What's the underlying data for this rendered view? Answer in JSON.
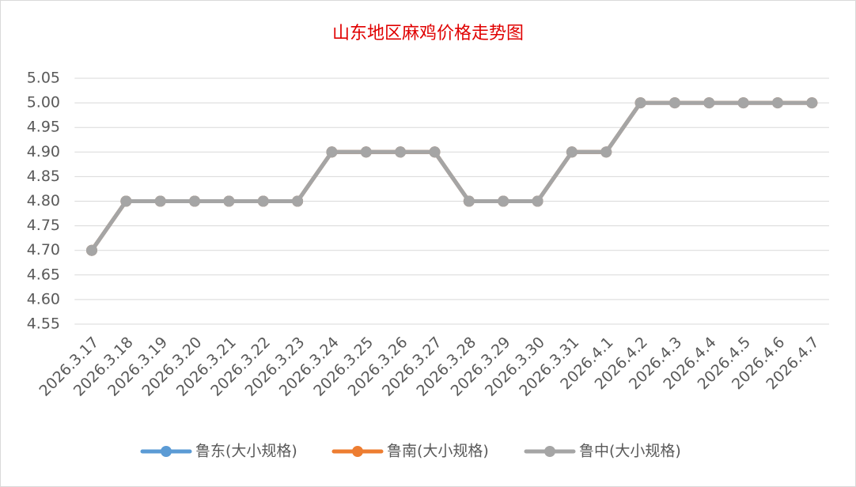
{
  "chart_data": {
    "type": "line",
    "title": "山东地区麻鸡价格走势图",
    "categories": [
      "2026.3.17",
      "2026.3.18",
      "2026.3.19",
      "2026.3.20",
      "2026.3.21",
      "2026.3.22",
      "2026.3.23",
      "2026.3.24",
      "2026.3.25",
      "2026.3.26",
      "2026.3.27",
      "2026.3.28",
      "2026.3.29",
      "2026.3.30",
      "2026.3.31",
      "2026.4.1",
      "2026.4.2",
      "2026.4.3",
      "2026.4.4",
      "2026.4.5",
      "2026.4.6",
      "2026.4.7"
    ],
    "series": [
      {
        "name": "鲁东(大小规格)",
        "color": "#5b9bd5",
        "values": [
          4.7,
          4.8,
          4.8,
          4.8,
          4.8,
          4.8,
          4.8,
          4.9,
          4.9,
          4.9,
          4.9,
          4.8,
          4.8,
          4.8,
          4.9,
          4.9,
          5.0,
          5.0,
          5.0,
          5.0,
          5.0,
          5.0
        ]
      },
      {
        "name": "鲁南(大小规格)",
        "color": "#ed7d31",
        "values": [
          4.7,
          4.8,
          4.8,
          4.8,
          4.8,
          4.8,
          4.8,
          4.9,
          4.9,
          4.9,
          4.9,
          4.8,
          4.8,
          4.8,
          4.9,
          4.9,
          5.0,
          5.0,
          5.0,
          5.0,
          5.0,
          5.0
        ]
      },
      {
        "name": "鲁中(大小规格)",
        "color": "#a5a5a5",
        "values": [
          4.7,
          4.8,
          4.8,
          4.8,
          4.8,
          4.8,
          4.8,
          4.9,
          4.9,
          4.9,
          4.9,
          4.8,
          4.8,
          4.8,
          4.9,
          4.9,
          5.0,
          5.0,
          5.0,
          5.0,
          5.0,
          5.0
        ]
      }
    ],
    "ylim": [
      4.55,
      5.05
    ],
    "yticks": [
      {
        "value": 4.55,
        "label": "4.55"
      },
      {
        "value": 4.6,
        "label": "4.60"
      },
      {
        "value": 4.65,
        "label": "4.65"
      },
      {
        "value": 4.7,
        "label": "4.70"
      },
      {
        "value": 4.75,
        "label": "4.75"
      },
      {
        "value": 4.8,
        "label": "4.80"
      },
      {
        "value": 4.85,
        "label": "4.85"
      },
      {
        "value": 4.9,
        "label": "4.90"
      },
      {
        "value": 4.95,
        "label": "4.95"
      },
      {
        "value": 5.0,
        "label": "5.00"
      },
      {
        "value": 5.05,
        "label": "5.05"
      }
    ],
    "grid": true
  }
}
